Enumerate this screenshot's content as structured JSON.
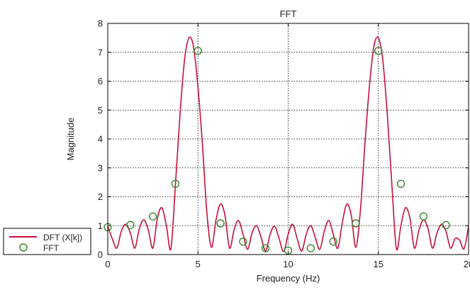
{
  "chart_data": {
    "type": "line",
    "title": "FFT",
    "xlabel": "Frequency (Hz)",
    "ylabel": "Magnitude",
    "xlim": [
      0,
      20
    ],
    "ylim": [
      0,
      8
    ],
    "x_ticks": [
      "0",
      "5",
      "10",
      "15",
      "20"
    ],
    "y_ticks": [
      "0",
      "1",
      "2",
      "3",
      "4",
      "5",
      "6",
      "7",
      "8"
    ],
    "grid": true,
    "legend_position": "bottom-left outside",
    "series": [
      {
        "name": "DFT (X[k])",
        "kind": "line",
        "color": "#c8103c",
        "x": [
          0,
          0.25,
          0.5,
          0.75,
          1.0,
          1.25,
          1.5,
          1.75,
          2.0,
          2.25,
          2.5,
          2.75,
          3.0,
          3.25,
          3.5,
          3.75,
          4.0,
          4.25,
          4.5,
          4.75,
          5.0,
          5.25,
          5.5,
          5.75,
          6.0,
          6.25,
          6.5,
          6.75,
          7.0,
          7.25,
          7.5,
          7.75,
          8.0,
          8.25,
          8.5,
          8.75,
          9.0,
          9.25,
          9.5,
          9.75,
          10.0,
          10.25,
          10.5,
          10.75,
          11.0,
          11.25,
          11.5,
          11.75,
          12.0,
          12.25,
          12.5,
          12.75,
          13.0,
          13.25,
          13.5,
          13.75,
          14.0,
          14.25,
          14.5,
          14.75,
          15.0,
          15.25,
          15.5,
          15.75,
          16.0,
          16.25,
          16.5,
          16.75,
          17.0,
          17.25,
          17.5,
          17.75,
          18.0,
          18.25,
          18.5,
          18.75,
          19.0,
          19.25,
          19.5,
          19.75,
          20.0
        ],
        "values": [
          0.98,
          0.55,
          0.22,
          0.8,
          1.05,
          0.75,
          0.22,
          0.9,
          1.2,
          0.85,
          0.22,
          1.25,
          1.62,
          1.0,
          0.2,
          2.4,
          4.8,
          6.7,
          7.5,
          7.2,
          5.8,
          3.8,
          1.4,
          0.25,
          1.2,
          1.75,
          1.35,
          0.22,
          0.85,
          1.18,
          0.7,
          0.18,
          0.75,
          1.0,
          0.6,
          0.12,
          0.7,
          0.98,
          0.55,
          0.1,
          0.7,
          1.05,
          0.55,
          0.12,
          0.7,
          1.0,
          0.6,
          0.18,
          0.8,
          1.18,
          0.7,
          0.22,
          1.1,
          1.75,
          1.35,
          0.25,
          1.5,
          3.8,
          5.8,
          7.2,
          7.5,
          6.7,
          4.8,
          2.4,
          0.2,
          1.0,
          1.62,
          1.25,
          0.22,
          0.85,
          1.2,
          0.9,
          0.22,
          0.75,
          1.05,
          0.8,
          0.22,
          0.55,
          0.5,
          0.2,
          0.98
        ]
      },
      {
        "name": "FFT",
        "kind": "scatter",
        "color": "#3a8a2e",
        "x": [
          0,
          1.25,
          2.5,
          3.75,
          5.0,
          6.25,
          7.5,
          8.75,
          10.0,
          11.25,
          12.5,
          13.75,
          15.0,
          16.25,
          17.5,
          18.75
        ],
        "values": [
          0.95,
          1.02,
          1.32,
          2.45,
          7.05,
          1.08,
          0.45,
          0.22,
          0.14,
          0.22,
          0.45,
          1.08,
          7.05,
          2.45,
          1.32,
          1.02
        ]
      }
    ]
  }
}
